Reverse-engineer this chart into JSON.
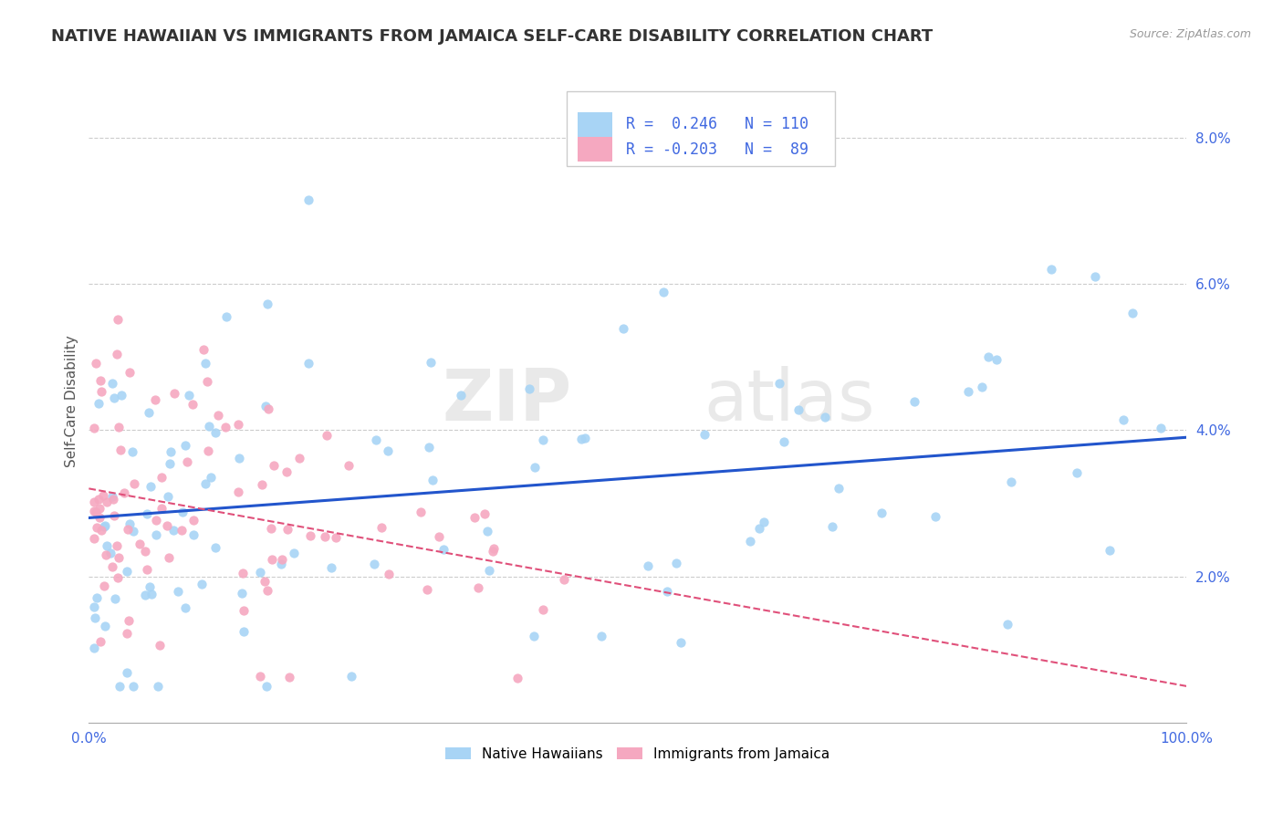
{
  "title": "NATIVE HAWAIIAN VS IMMIGRANTS FROM JAMAICA SELF-CARE DISABILITY CORRELATION CHART",
  "source_text": "Source: ZipAtlas.com",
  "ylabel": "Self-Care Disability",
  "xlim": [
    0.0,
    1.0
  ],
  "ylim": [
    0.0,
    0.088
  ],
  "y_ticks": [
    0.02,
    0.04,
    0.06,
    0.08
  ],
  "y_tick_labels": [
    "2.0%",
    "4.0%",
    "6.0%",
    "8.0%"
  ],
  "r_hawaiian": 0.246,
  "n_hawaiian": 110,
  "r_jamaica": -0.203,
  "n_jamaica": 89,
  "color_hawaiian": "#a8d4f5",
  "color_jamaica": "#f5a8c0",
  "line_color_hawaiian": "#2255cc",
  "line_color_jamaica": "#e0507a",
  "watermark_zip": "ZIP",
  "watermark_atlas": "atlas",
  "background_color": "#ffffff",
  "grid_color": "#cccccc",
  "title_color": "#333333",
  "legend_text_color": "#4169E1",
  "tick_color": "#4169E1",
  "source_color": "#999999"
}
